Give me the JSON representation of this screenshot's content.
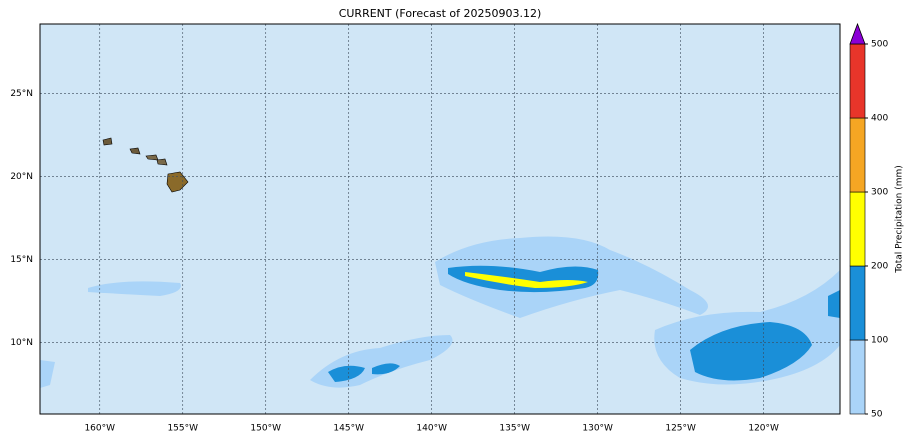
{
  "map": {
    "title": "CURRENT (Forecast of 20250903.12)",
    "xlim": [
      -163.6,
      -115.4
    ],
    "ylim": [
      5.7,
      29.2
    ],
    "xticks": [
      {
        "value": -160,
        "label": "160°W"
      },
      {
        "value": -155,
        "label": "155°W"
      },
      {
        "value": -150,
        "label": "150°W"
      },
      {
        "value": -145,
        "label": "145°W"
      },
      {
        "value": -140,
        "label": "140°W"
      },
      {
        "value": -135,
        "label": "135°W"
      },
      {
        "value": -130,
        "label": "130°W"
      },
      {
        "value": -125,
        "label": "125°W"
      },
      {
        "value": -120,
        "label": "120°W"
      }
    ],
    "yticks": [
      {
        "value": 10,
        "label": "10°N"
      },
      {
        "value": 15,
        "label": "15°N"
      },
      {
        "value": 20,
        "label": "20°N"
      },
      {
        "value": 25,
        "label": "25°N"
      }
    ],
    "grid": true,
    "colorbar": {
      "label": "Total Precipitation (mm)",
      "levels": [
        50,
        100,
        200,
        300,
        400,
        500
      ],
      "colors": [
        "#aad4f8",
        "#1a8fd8",
        "#ffff00",
        "#f5a623",
        "#e8352a"
      ],
      "extend_color": "#8b00d6"
    }
  }
}
